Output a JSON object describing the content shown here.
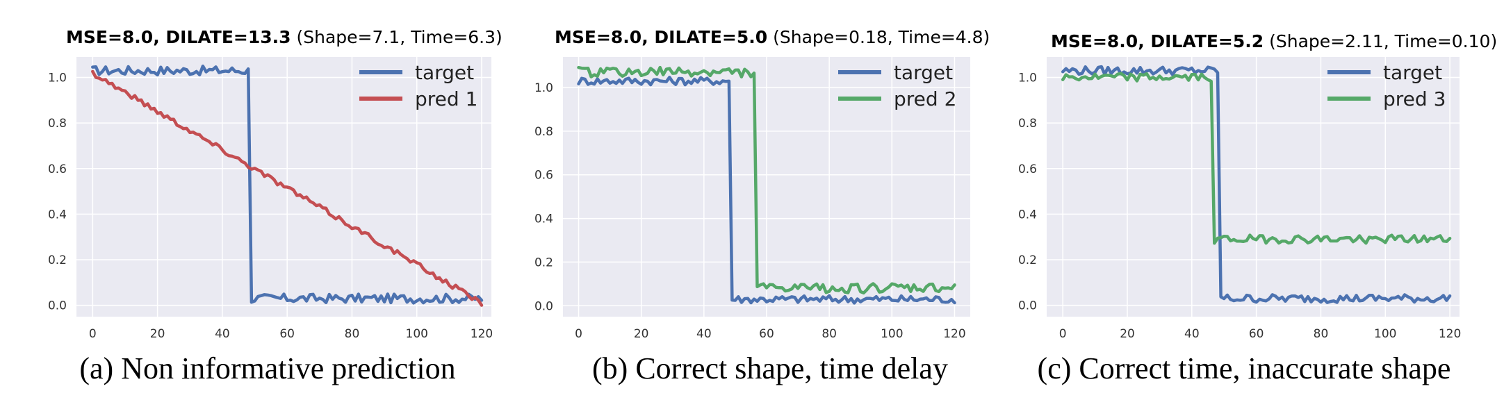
{
  "chart_data": [
    {
      "type": "line",
      "title_bold": "MSE=8.0, DILATE=13.3",
      "title_rest": " (Shape=7.1, Time=6.3)",
      "caption": "(a) Non informative prediction",
      "xlim": [
        -5,
        123
      ],
      "ylim": [
        -0.05,
        1.09
      ],
      "xticks": [
        0,
        20,
        40,
        60,
        80,
        100,
        120
      ],
      "yticks": [
        0.0,
        0.2,
        0.4,
        0.6,
        0.8,
        1.0
      ],
      "grid": true,
      "legend_position": "top-right",
      "series": [
        {
          "name": "target",
          "color": "#4c72b0",
          "shape": "step",
          "x_start": 0,
          "x_end": 120,
          "step_x": 49,
          "level_before": 1.03,
          "level_after": 0.03,
          "noise": 0.02
        },
        {
          "name": "pred 1",
          "color": "#c44e52",
          "shape": "ramp",
          "x_start": 0,
          "x_end": 120,
          "level_start": 1.02,
          "level_end": 0.01,
          "noise": 0.012
        }
      ]
    },
    {
      "type": "line",
      "title_bold": "MSE=8.0, DILATE=5.0",
      "title_rest": " (Shape=0.18, Time=4.8)",
      "caption": "(b) Correct shape, time delay",
      "xlim": [
        -5,
        125
      ],
      "ylim": [
        -0.05,
        1.14
      ],
      "xticks": [
        0,
        20,
        40,
        60,
        80,
        100,
        120
      ],
      "yticks": [
        0.0,
        0.2,
        0.4,
        0.6,
        0.8,
        1.0
      ],
      "grid": true,
      "legend_position": "top-right",
      "series": [
        {
          "name": "target",
          "color": "#4c72b0",
          "shape": "step",
          "x_start": 0,
          "x_end": 120,
          "step_x": 49,
          "level_before": 1.03,
          "level_after": 0.03,
          "noise": 0.018
        },
        {
          "name": "pred 2",
          "color": "#55a868",
          "shape": "step",
          "x_start": 0,
          "x_end": 120,
          "step_x": 57,
          "level_before": 1.07,
          "level_after": 0.08,
          "noise": 0.022
        }
      ]
    },
    {
      "type": "line",
      "title_bold": "MSE=8.0, DILATE=5.2",
      "title_rest": " (Shape=2.11, Time=0.10)",
      "caption": "(c) Correct time, inaccurate shape",
      "xlim": [
        -5,
        123
      ],
      "ylim": [
        -0.05,
        1.09
      ],
      "xticks": [
        0,
        20,
        40,
        60,
        80,
        100,
        120
      ],
      "yticks": [
        0.0,
        0.2,
        0.4,
        0.6,
        0.8,
        1.0
      ],
      "grid": true,
      "legend_position": "top-right",
      "series": [
        {
          "name": "target",
          "color": "#4c72b0",
          "shape": "step",
          "x_start": 0,
          "x_end": 120,
          "step_x": 49,
          "level_before": 1.03,
          "level_after": 0.03,
          "noise": 0.018
        },
        {
          "name": "pred 3",
          "color": "#55a868",
          "shape": "step",
          "x_start": 0,
          "x_end": 120,
          "step_x": 47,
          "level_before": 1.0,
          "level_after": 0.29,
          "noise": 0.018
        }
      ]
    }
  ]
}
